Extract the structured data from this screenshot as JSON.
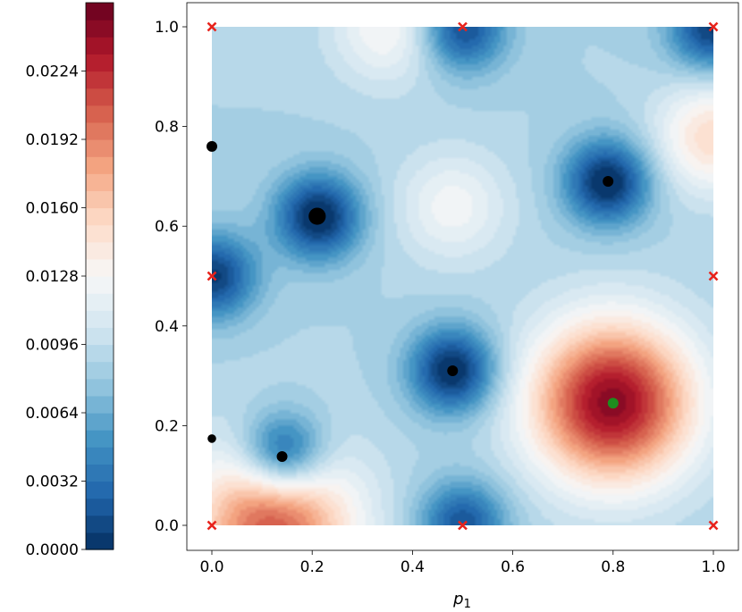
{
  "chart_data": [
    {
      "type": "heatmap",
      "title": "",
      "xlabel_main": "p",
      "xlabel_sub": "1",
      "ylabel": "",
      "xlim": [
        0.0,
        1.0
      ],
      "ylim": [
        0.0,
        1.0
      ],
      "xticks": [
        "0.0",
        "0.2",
        "0.4",
        "0.6",
        "0.8",
        "1.0"
      ],
      "yticks": [
        "0.0",
        "0.2",
        "0.4",
        "0.6",
        "0.8",
        "1.0"
      ],
      "grid": false,
      "colormap": "RdBu_r (filled contours)",
      "field_features": [
        {
          "kind": "minimum",
          "x": 0.0,
          "y": 0.5,
          "level": 0.001
        },
        {
          "kind": "minimum",
          "x": 0.21,
          "y": 0.62,
          "level": 0.0
        },
        {
          "kind": "minimum",
          "x": 0.79,
          "y": 0.69,
          "level": 0.0
        },
        {
          "kind": "minimum",
          "x": 0.48,
          "y": 0.31,
          "level": 0.0
        },
        {
          "kind": "minimum",
          "x": 0.14,
          "y": 0.14,
          "level": 0.0
        },
        {
          "kind": "minimum",
          "x": 0.5,
          "y": 1.0,
          "level": 0.0015
        },
        {
          "kind": "minimum",
          "x": 0.5,
          "y": 0.0,
          "level": 0.002
        },
        {
          "kind": "minimum",
          "x": 1.0,
          "y": 1.0,
          "level": 0.001
        },
        {
          "kind": "maximum",
          "x": 0.8,
          "y": 0.245,
          "level": 0.0245
        },
        {
          "kind": "maximum",
          "x": 0.12,
          "y": 0.0,
          "level": 0.021
        },
        {
          "kind": "plateau",
          "x": 0.48,
          "y": 0.64,
          "level": 0.0125
        },
        {
          "kind": "plateau",
          "x": 1.0,
          "y": 0.78,
          "level": 0.015
        },
        {
          "kind": "plateau",
          "x": 0.35,
          "y": 1.0,
          "level": 0.013
        }
      ],
      "series": [
        {
          "name": "",
          "marker": "x",
          "color": "#e8231c",
          "points": [
            [
              0.0,
              1.0
            ],
            [
              0.5,
              1.0
            ],
            [
              1.0,
              1.0
            ],
            [
              0.0,
              0.5
            ],
            [
              1.0,
              0.5
            ],
            [
              0.0,
              0.0
            ],
            [
              0.5,
              0.0
            ],
            [
              1.0,
              0.0
            ]
          ]
        },
        {
          "name": "",
          "marker": "circle",
          "color": "#000000",
          "points": [
            [
              0.0,
              0.76,
              5
            ],
            [
              0.21,
              0.62,
              8
            ],
            [
              0.79,
              0.69,
              5
            ],
            [
              0.48,
              0.31,
              5
            ],
            [
              0.0,
              0.174,
              4
            ],
            [
              0.14,
              0.138,
              5
            ]
          ]
        },
        {
          "name": "",
          "marker": "circle",
          "color": "#1e8c1e",
          "points": [
            [
              0.8,
              0.245,
              5
            ]
          ]
        }
      ]
    },
    {
      "type": "colorbar",
      "min": 0.0,
      "max": 0.0256,
      "levels": 32,
      "ticks": [
        0.0,
        0.0032,
        0.0064,
        0.0096,
        0.0128,
        0.016,
        0.0192,
        0.0224
      ],
      "tick_labels": [
        "0.0000",
        "0.0032",
        "0.0064",
        "0.0096",
        "0.0128",
        "0.0160",
        "0.0192",
        "0.0224"
      ]
    }
  ]
}
